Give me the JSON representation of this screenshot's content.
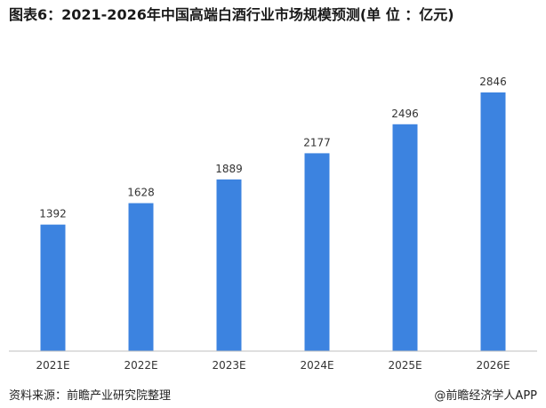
{
  "title": "图表6：2021-2026年中国高端白酒行业市场规模预测(单 位 ：亿元)",
  "source": "资料来源：前瞻产业研究院整理",
  "credit": "@前瞻经济学人APP",
  "colors": {
    "bar": "#3C83E0",
    "axis": "#bfbfbf"
  },
  "chart_data": {
    "type": "bar",
    "categories": [
      "2021E",
      "2022E",
      "2023E",
      "2024E",
      "2025E",
      "2026E"
    ],
    "values": [
      1392,
      1628,
      1889,
      2177,
      2496,
      2846
    ],
    "ylim": [
      0,
      3000
    ],
    "grid": false,
    "xlabel": "",
    "ylabel": ""
  }
}
